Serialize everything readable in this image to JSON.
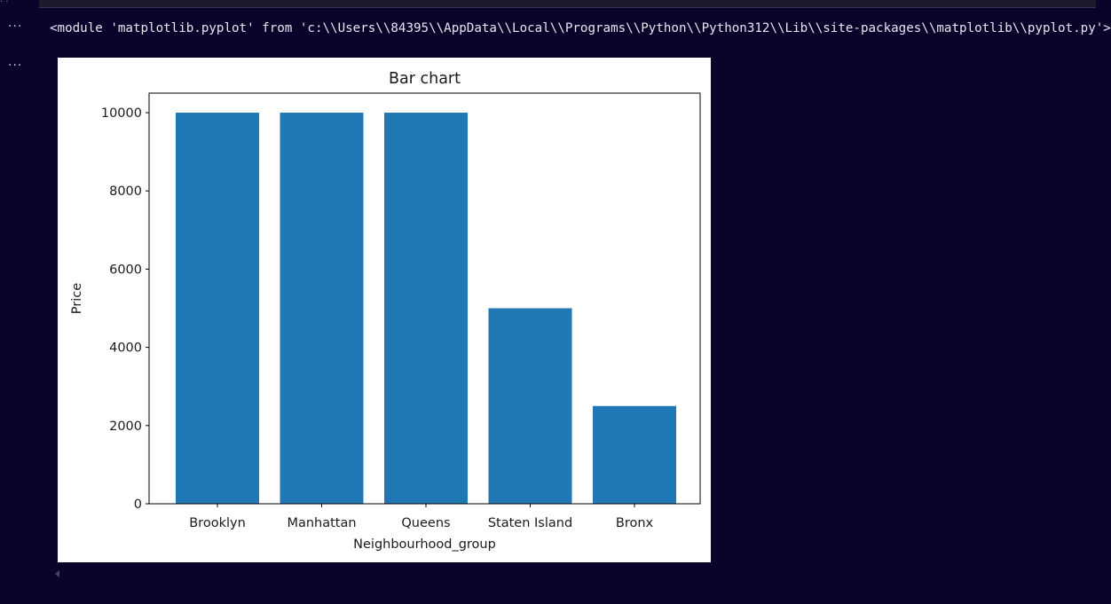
{
  "output": {
    "stdout_line": "<module 'matplotlib.pyplot' from 'c:\\\\Users\\\\84395\\\\AppData\\\\Local\\\\Programs\\\\Python\\\\Python312\\\\Lib\\\\site-packages\\\\matplotlib\\\\pyplot.py'>"
  },
  "ellipsis": "···",
  "colors": {
    "background": "#0a032a",
    "bar": "#1f77b4"
  },
  "chart_data": {
    "type": "bar",
    "title": "Bar chart",
    "xlabel": "Neighbourhood_group",
    "ylabel": "Price",
    "categories": [
      "Brooklyn",
      "Manhattan",
      "Queens",
      "Staten Island",
      "Bronx"
    ],
    "values": [
      10000,
      10000,
      10000,
      5000,
      2500
    ],
    "yticks": [
      0,
      2000,
      4000,
      6000,
      8000,
      10000
    ],
    "ylim": [
      0,
      10500
    ],
    "grid": false,
    "bar_color": "#1f77b4"
  }
}
